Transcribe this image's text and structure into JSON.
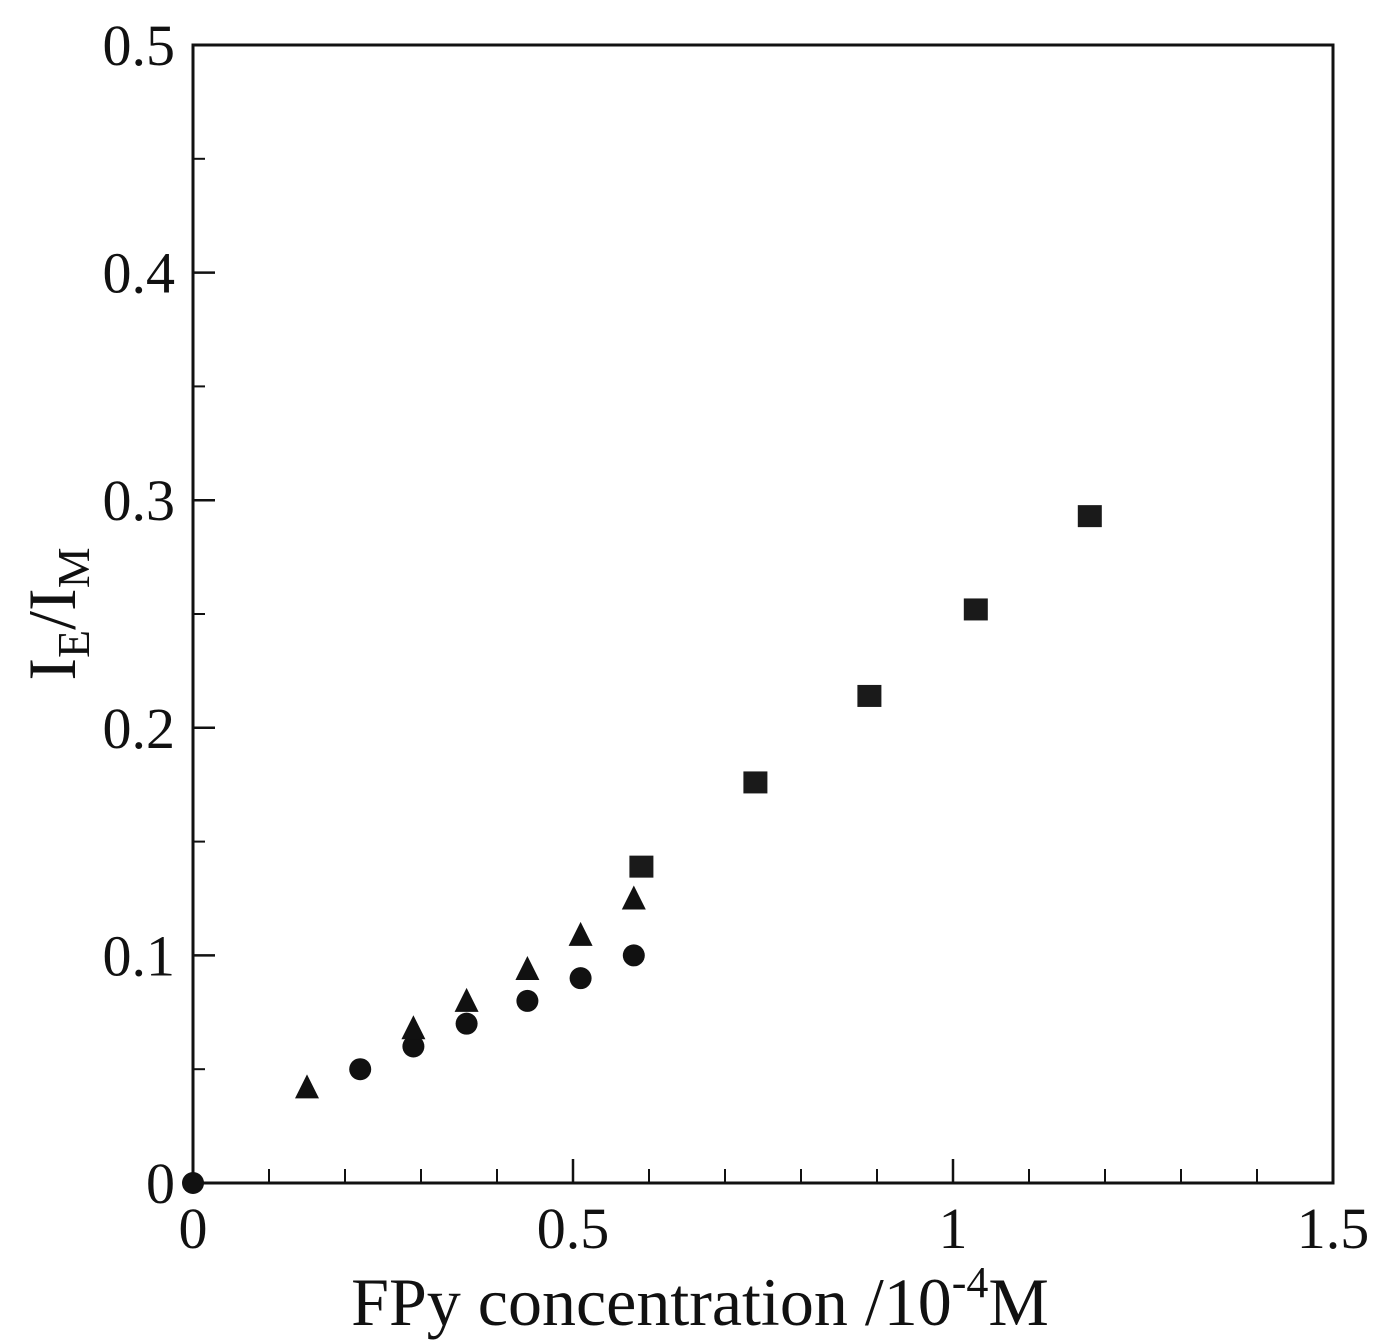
{
  "chart_data": {
    "type": "scatter",
    "title": "",
    "xlabel": {
      "main": "FPy concentration /10",
      "exponent": "-4",
      "unit": "M"
    },
    "ylabel": {
      "main_1": "I",
      "sub_1": "E",
      "separator": "/",
      "main_2": "I",
      "sub_2": "M"
    },
    "xlim": [
      0,
      1.5
    ],
    "ylim": [
      0,
      0.5
    ],
    "x_ticks": [
      {
        "value": 0,
        "label": "0"
      },
      {
        "value": 0.5,
        "label": "0.5"
      },
      {
        "value": 1,
        "label": "1"
      },
      {
        "value": 1.5,
        "label": "1.5"
      }
    ],
    "x_minor_tick_step": 0.1,
    "y_ticks": [
      {
        "value": 0,
        "label": "0"
      },
      {
        "value": 0.1,
        "label": "0.1"
      },
      {
        "value": 0.2,
        "label": "0.2"
      },
      {
        "value": 0.3,
        "label": "0.3"
      },
      {
        "value": 0.4,
        "label": "0.4"
      },
      {
        "value": 0.5,
        "label": "0.5"
      }
    ],
    "y_minor_tick_step": 0.05,
    "grid": false,
    "legend": "none",
    "series": [
      {
        "marker": "circle",
        "color": "#111111",
        "points": [
          {
            "x": 0.0,
            "y": 0.0
          },
          {
            "x": 0.22,
            "y": 0.05
          },
          {
            "x": 0.29,
            "y": 0.06
          },
          {
            "x": 0.36,
            "y": 0.07
          },
          {
            "x": 0.44,
            "y": 0.08
          },
          {
            "x": 0.51,
            "y": 0.09
          },
          {
            "x": 0.58,
            "y": 0.1
          }
        ]
      },
      {
        "marker": "triangle",
        "color": "#111111",
        "points": [
          {
            "x": 0.15,
            "y": 0.042
          },
          {
            "x": 0.29,
            "y": 0.068
          },
          {
            "x": 0.36,
            "y": 0.08
          },
          {
            "x": 0.44,
            "y": 0.094
          },
          {
            "x": 0.51,
            "y": 0.109
          },
          {
            "x": 0.58,
            "y": 0.125
          }
        ]
      },
      {
        "marker": "square",
        "color": "#1a1a1a",
        "points": [
          {
            "x": 0.59,
            "y": 0.139
          },
          {
            "x": 0.74,
            "y": 0.176
          },
          {
            "x": 0.89,
            "y": 0.214
          },
          {
            "x": 1.03,
            "y": 0.252
          },
          {
            "x": 1.18,
            "y": 0.293
          }
        ]
      }
    ]
  }
}
